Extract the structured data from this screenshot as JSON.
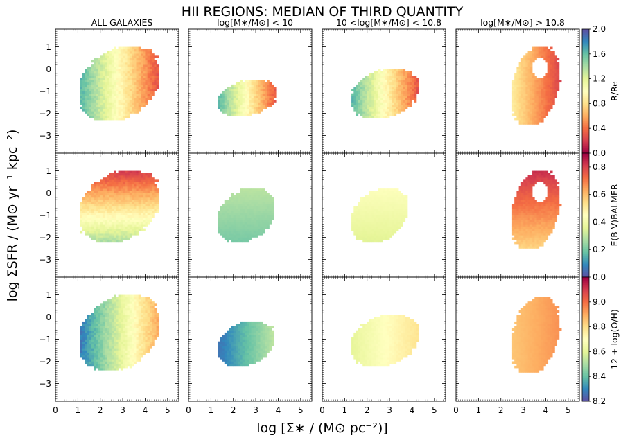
{
  "chart_data": {
    "type": "heatmap",
    "title": "HII REGIONS: MEDIAN OF THIRD QUANTITY",
    "xlabel": "log [Σ∗ / (M⊙ pc⁻²)]",
    "ylabel": "log ΣSFR / (M⊙ yr⁻¹ kpc⁻²)",
    "xlim": [
      0,
      5.5
    ],
    "ylim": [
      -3.8,
      1.8
    ],
    "xticks": [
      "0",
      "1",
      "2",
      "3",
      "4",
      "5"
    ],
    "yticks": [
      "1",
      "0",
      "−1",
      "−2",
      "−3"
    ],
    "columns": [
      "ALL GALAXIES",
      "log[M∗/M⊙] < 10",
      "10 <log[M∗/M⊙] < 10.8",
      "log[M∗/M⊙] > 10.8"
    ],
    "rows": [
      {
        "quantity": "R/Re",
        "colorbar_label": "R/Re",
        "clim": [
          0.0,
          2.0
        ],
        "colorbar_ticks": [
          "0.0",
          "0.4",
          "0.8",
          "1.2",
          "1.6",
          "2.0"
        ],
        "colormap": "Spectral",
        "trend": "value decreases with increasing log Σ∗ (~1.7 at low Σ∗ to ~0.2 at high Σ∗)"
      },
      {
        "quantity": "E(B-V)BALMER",
        "colorbar_label": "E(B-V)BALMER",
        "clim": [
          0.0,
          0.9
        ],
        "colorbar_ticks": [
          "0.0",
          "0.2",
          "0.4",
          "0.6",
          "0.8"
        ],
        "colormap": "Spectral_r",
        "trend": "value increases with log ΣSFR (~0.25 at log ΣSFR=-2 to ~0.85 at log ΣSFR=+1)"
      },
      {
        "quantity": "12 + log(O/H)",
        "colorbar_label": "12 + log(O/H)",
        "clim": [
          8.2,
          9.2
        ],
        "colorbar_ticks": [
          "8.2",
          "8.4",
          "8.6",
          "8.8",
          "9.0"
        ],
        "colormap": "Spectral_r",
        "trend": "value increases with log Σ∗ (~8.25 at low Σ∗ to ~8.95 at high Σ∗)"
      }
    ],
    "panels": [
      [
        {
          "column": "ALL GALAXIES",
          "xmin": 1.1,
          "xmax": 4.6,
          "ymin": -2.3,
          "ymax": 1.0,
          "value_range": [
            0.2,
            1.7
          ]
        },
        {
          "column": "log[M∗/M⊙] < 10",
          "xmin": 1.3,
          "xmax": 3.9,
          "ymin": -2.1,
          "ymax": -0.5,
          "value_range": [
            0.2,
            1.7
          ]
        },
        {
          "column": "10 <log[M∗/M⊙] < 10.8",
          "xmin": 1.3,
          "xmax": 4.3,
          "ymin": -2.2,
          "ymax": 0.0,
          "value_range": [
            0.2,
            1.7
          ]
        },
        {
          "column": "log[M∗/M⊙] > 10.8",
          "xmin": 2.5,
          "xmax": 4.6,
          "ymin": -2.5,
          "ymax": 1.0,
          "value_range": [
            0.2,
            0.9
          ]
        }
      ],
      [
        {
          "column": "ALL GALAXIES",
          "xmin": 1.1,
          "xmax": 4.6,
          "ymin": -2.2,
          "ymax": 1.0,
          "value_range": [
            0.25,
            0.85
          ]
        },
        {
          "column": "log[M∗/M⊙] < 10",
          "xmin": 1.3,
          "xmax": 3.8,
          "ymin": -2.2,
          "ymax": 0.2,
          "value_range": [
            0.2,
            0.3
          ]
        },
        {
          "column": "10 <log[M∗/M⊙] < 10.8",
          "xmin": 1.3,
          "xmax": 3.8,
          "ymin": -2.2,
          "ymax": 0.2,
          "value_range": [
            0.35,
            0.45
          ]
        },
        {
          "column": "log[M∗/M⊙] > 10.8",
          "xmin": 2.5,
          "xmax": 4.6,
          "ymin": -2.5,
          "ymax": 1.0,
          "value_range": [
            0.55,
            0.85
          ]
        }
      ],
      [
        {
          "column": "ALL GALAXIES",
          "xmin": 1.1,
          "xmax": 4.6,
          "ymin": -2.4,
          "ymax": 1.0,
          "value_range": [
            8.25,
            8.95
          ]
        },
        {
          "column": "log[M∗/M⊙] < 10",
          "xmin": 1.3,
          "xmax": 3.8,
          "ymin": -2.2,
          "ymax": -0.2,
          "value_range": [
            8.25,
            8.55
          ]
        },
        {
          "column": "10 <log[M∗/M⊙] < 10.8",
          "xmin": 1.3,
          "xmax": 4.3,
          "ymin": -2.2,
          "ymax": 0.1,
          "value_range": [
            8.6,
            8.8
          ]
        },
        {
          "column": "log[M∗/M⊙] > 10.8",
          "xmin": 2.5,
          "xmax": 4.6,
          "ymin": -2.5,
          "ymax": 0.9,
          "value_range": [
            8.85,
            8.95
          ]
        }
      ]
    ]
  }
}
